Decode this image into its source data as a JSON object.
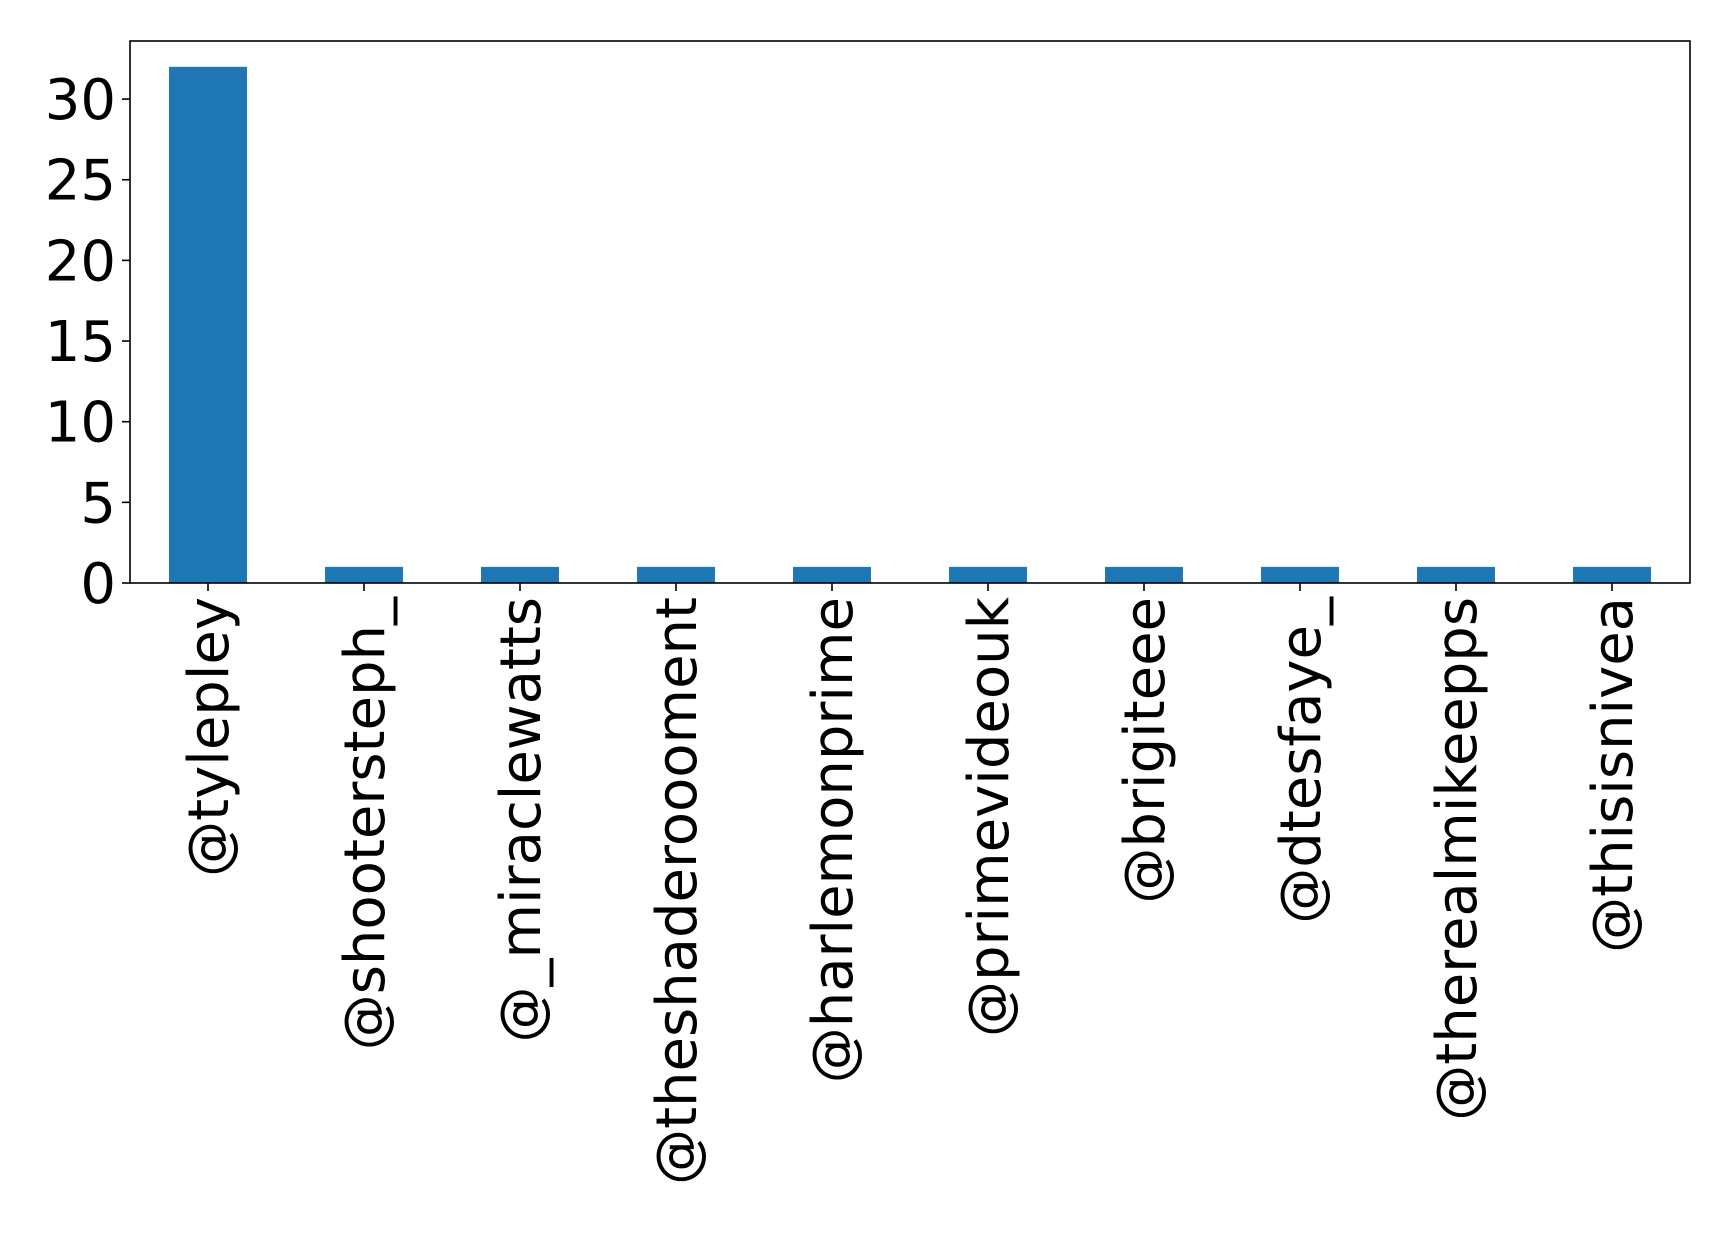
{
  "chart_data": {
    "type": "bar",
    "categories": [
      "@tyleplеy",
      "@shootersteph_",
      "@_miraclewatts",
      "@theshaderoooment",
      "@harlemonprime",
      "@primevideouk",
      "@brigiteee",
      "@dtesfaye_",
      "@therealmikeepps",
      "@thisisnivea"
    ],
    "values": [
      32,
      1,
      1,
      1,
      1,
      1,
      1,
      1,
      1,
      1
    ],
    "title": "",
    "xlabel": "",
    "ylabel": "",
    "ylim": [
      0,
      33.6
    ],
    "yticks": [
      0,
      5,
      10,
      15,
      20,
      25,
      30
    ],
    "grid": false,
    "bar_color": "#1f77b4"
  }
}
